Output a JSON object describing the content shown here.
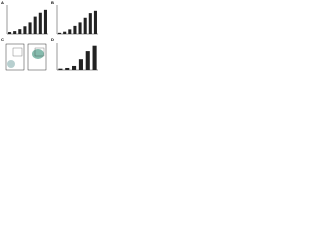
{
  "panels": [
    "A",
    "B",
    "C",
    "D"
  ],
  "chart_data": [
    {
      "type": "bar",
      "categories": [
        null,
        null,
        null,
        null,
        null,
        null,
        null,
        null
      ],
      "values": [
        2,
        3,
        5,
        8,
        12,
        18,
        22,
        25
      ],
      "color": "#222222",
      "ylim": [
        0,
        30
      ]
    },
    {
      "type": "bar",
      "categories": [
        null,
        null,
        null,
        null,
        null,
        null,
        null,
        null
      ],
      "values": [
        1,
        2,
        4,
        7,
        10,
        14,
        18,
        20
      ],
      "color": "#222222",
      "ylim": [
        0,
        25
      ]
    },
    {
      "type": "bar",
      "categories": [
        null,
        null,
        null,
        null,
        null,
        null
      ],
      "values": [
        1,
        1.5,
        3,
        8,
        14,
        18
      ],
      "color": "#222222",
      "ylim": [
        0,
        20
      ]
    }
  ]
}
